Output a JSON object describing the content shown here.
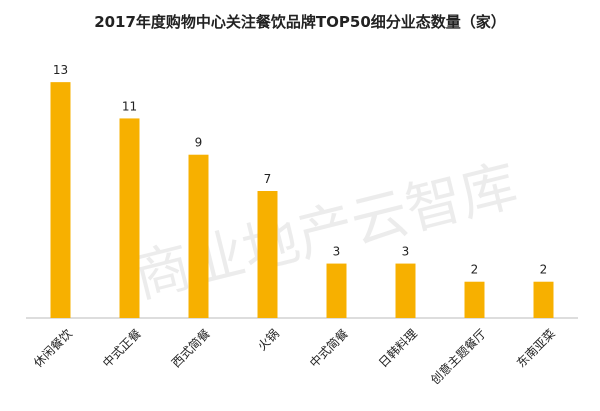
{
  "chart_data": {
    "type": "bar",
    "title": "2017年度购物中心关注餐饮品牌TOP50细分业态数量（家）",
    "categories": [
      "休闲餐饮",
      "中式正餐",
      "西式简餐",
      "火锅",
      "中式简餐",
      "日韩料理",
      "创意主题餐厅",
      "东南亚菜"
    ],
    "values": [
      13,
      11,
      9,
      7,
      3,
      3,
      2,
      2
    ],
    "color": "#f7b000",
    "ylim": [
      0,
      14
    ],
    "watermark": "商业地产云智库"
  }
}
